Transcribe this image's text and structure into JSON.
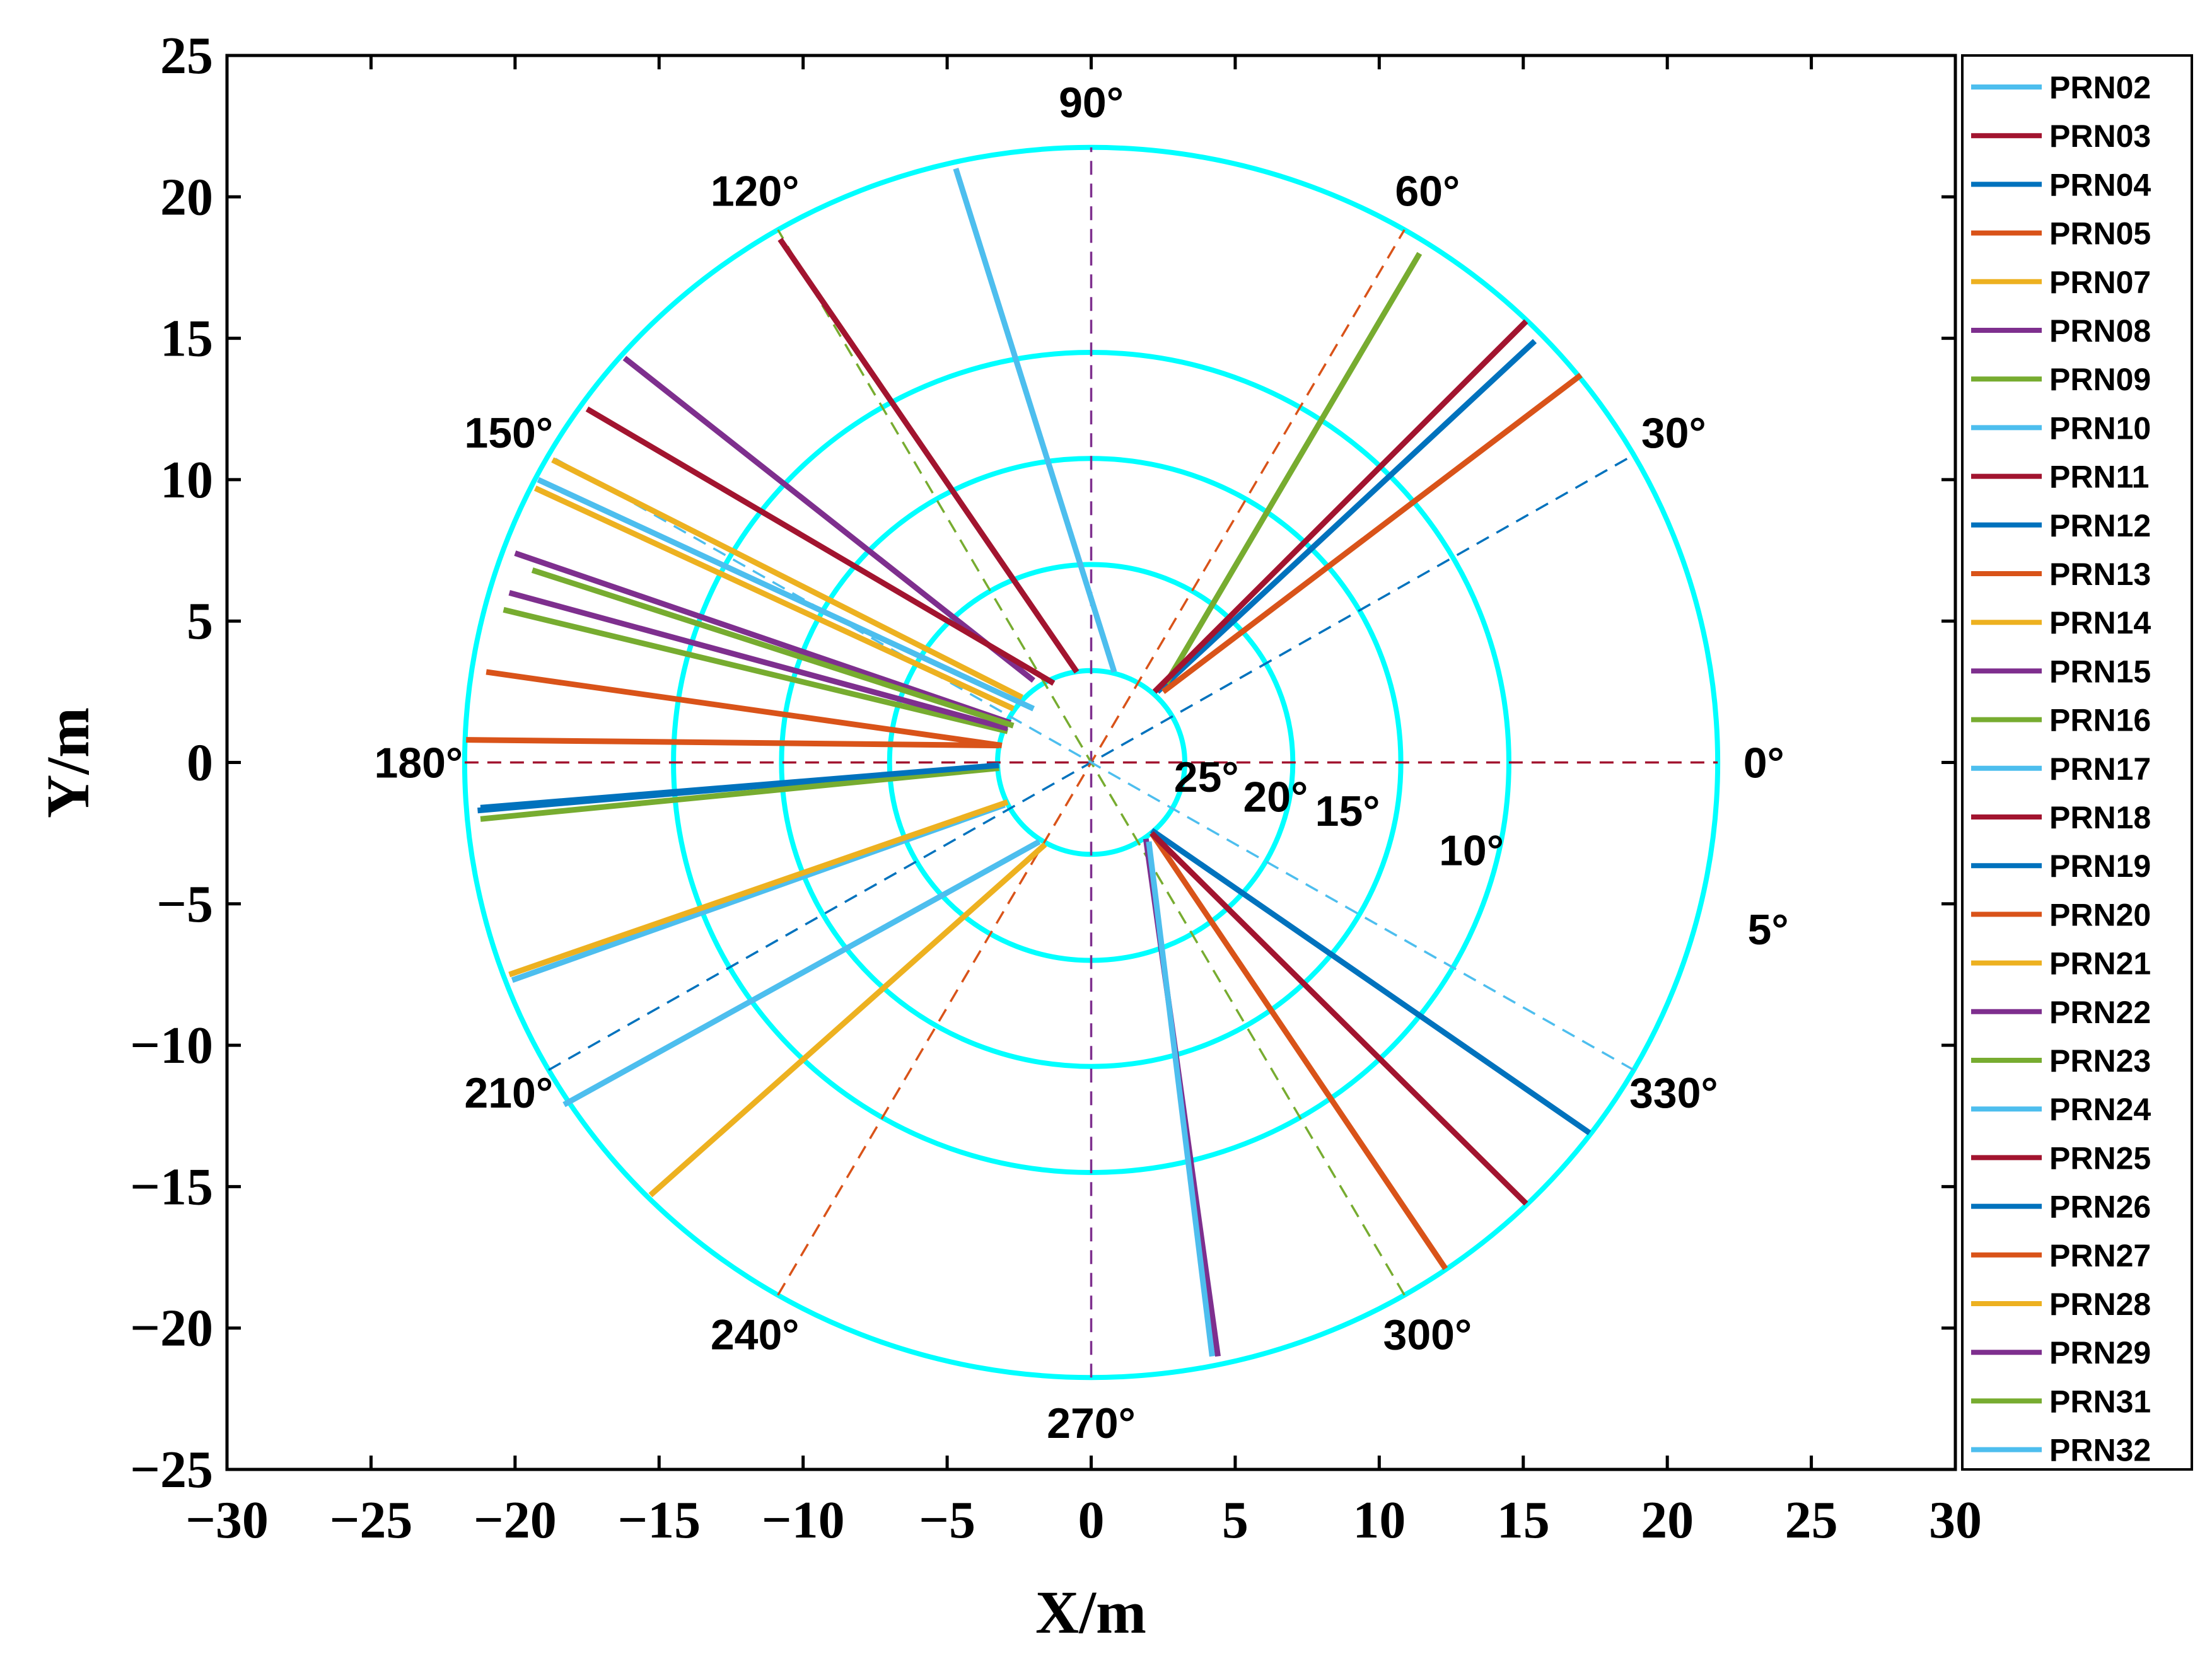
{
  "chart_data": {
    "type": "line",
    "xlabel": "X/m",
    "ylabel": "Y/m",
    "xlim": [
      -30,
      30
    ],
    "ylim": [
      -25,
      25
    ],
    "x_ticks": [
      -30,
      -25,
      -20,
      -15,
      -10,
      -5,
      0,
      5,
      10,
      15,
      20,
      25,
      30
    ],
    "y_ticks": [
      -25,
      -20,
      -15,
      -10,
      -5,
      0,
      5,
      10,
      15,
      20,
      25
    ],
    "grid": false,
    "legend_position": "right",
    "polar_overlay": {
      "ring_color": "#00ffff",
      "ring_radii": [
        3.25,
        7.0,
        10.75,
        14.5,
        21.75
      ],
      "ring_labels": [
        "25°",
        "20°",
        "15°",
        "10°",
        "5°"
      ],
      "ring_label_positions": [
        [
          4.0,
          -0.5
        ],
        [
          6.4,
          -1.2
        ],
        [
          8.9,
          -1.7
        ],
        [
          13.2,
          -3.1
        ],
        [
          23.5,
          -5.9
        ]
      ],
      "radial_lines": [
        {
          "angle": 0,
          "color": "#a2142f"
        },
        {
          "angle": 30,
          "color": "#0072bd"
        },
        {
          "angle": 60,
          "color": "#d95319"
        },
        {
          "angle": 90,
          "color": "#7e2f8e"
        },
        {
          "angle": 120,
          "color": "#77ac30"
        },
        {
          "angle": 150,
          "color": "#4dbeee"
        }
      ],
      "angle_labels": [
        {
          "text": "0°",
          "angle": 0
        },
        {
          "text": "30°",
          "angle": 30
        },
        {
          "text": "60°",
          "angle": 60
        },
        {
          "text": "90°",
          "angle": 90
        },
        {
          "text": "120°",
          "angle": 120
        },
        {
          "text": "150°",
          "angle": 150
        },
        {
          "text": "180°",
          "angle": 180
        },
        {
          "text": "210°",
          "angle": 210
        },
        {
          "text": "240°",
          "angle": 240
        },
        {
          "text": "270°",
          "angle": 270
        },
        {
          "text": "300°",
          "angle": 300
        },
        {
          "text": "330°",
          "angle": 330
        }
      ]
    },
    "series": [
      {
        "name": "PRN02",
        "color": "#4dbeee",
        "x": [
          -4.7,
          0.8
        ],
        "y": [
          21.0,
          3.2
        ]
      },
      {
        "name": "PRN03",
        "color": "#a2142f",
        "x": [
          -10.8,
          -0.5
        ],
        "y": [
          18.5,
          3.2
        ]
      },
      {
        "name": "PRN04",
        "color": "#0072bd",
        "x": [
          15.4,
          2.3
        ],
        "y": [
          14.9,
          2.5
        ]
      },
      {
        "name": "PRN05",
        "color": "#d95319",
        "x": [
          17.0,
          2.5
        ],
        "y": [
          13.7,
          2.5
        ]
      },
      {
        "name": "PRN07",
        "color": "#edb120",
        "x": [
          -18.7,
          -2.4
        ],
        "y": [
          10.7,
          2.3
        ]
      },
      {
        "name": "PRN08",
        "color": "#7e2f8e",
        "x": [
          -16.2,
          -2.0
        ],
        "y": [
          14.3,
          2.9
        ]
      },
      {
        "name": "PRN09",
        "color": "#77ac30",
        "x": [
          11.4,
          2.6
        ],
        "y": [
          18.0,
          2.8
        ]
      },
      {
        "name": "PRN10",
        "color": "#4dbeee",
        "x": [
          -19.2,
          -2.0
        ],
        "y": [
          10.0,
          1.9
        ]
      },
      {
        "name": "PRN11",
        "color": "#a2142f",
        "x": [
          15.1,
          2.2
        ],
        "y": [
          15.6,
          2.5
        ]
      },
      {
        "name": "PRN12",
        "color": "#0072bd",
        "x": [
          17.3,
          2.1
        ],
        "y": [
          -13.1,
          -2.4
        ]
      },
      {
        "name": "PRN13",
        "color": "#d95319",
        "x": [
          12.3,
          2.1
        ],
        "y": [
          -17.9,
          -2.5
        ]
      },
      {
        "name": "PRN14",
        "color": "#edb120",
        "x": [
          -19.3,
          -2.7
        ],
        "y": [
          9.7,
          1.9
        ]
      },
      {
        "name": "PRN15",
        "color": "#7e2f8e",
        "x": [
          -20.0,
          -2.8
        ],
        "y": [
          7.4,
          1.4
        ]
      },
      {
        "name": "PRN16",
        "color": "#77ac30",
        "x": [
          -20.4,
          -2.9
        ],
        "y": [
          5.4,
          1.1
        ]
      },
      {
        "name": "PRN17",
        "color": "#4dbeee",
        "x": [
          -20.1,
          -3.0
        ],
        "y": [
          -7.7,
          -1.5
        ]
      },
      {
        "name": "PRN18",
        "color": "#a2142f",
        "x": [
          -17.5,
          -1.3
        ],
        "y": [
          12.5,
          2.8
        ]
      },
      {
        "name": "PRN19",
        "color": "#0072bd",
        "x": [
          -21.3,
          -3.2
        ],
        "y": [
          -1.7,
          -0.1
        ]
      },
      {
        "name": "PRN20",
        "color": "#d95319",
        "x": [
          -21.0,
          -3.1
        ],
        "y": [
          3.2,
          0.6
        ]
      },
      {
        "name": "PRN21",
        "color": "#edb120",
        "x": [
          -20.2,
          -2.9
        ],
        "y": [
          -7.5,
          -1.4
        ]
      },
      {
        "name": "PRN22",
        "color": "#7e2f8e",
        "x": [
          -20.2,
          -2.9
        ],
        "y": [
          6.0,
          1.2
        ]
      },
      {
        "name": "PRN23",
        "color": "#77ac30",
        "x": [
          -21.2,
          -3.2
        ],
        "y": [
          -2.0,
          -0.2
        ]
      },
      {
        "name": "PRN24",
        "color": "#4dbeee",
        "x": [
          -18.3,
          -1.8
        ],
        "y": [
          -12.1,
          -2.8
        ]
      },
      {
        "name": "PRN25",
        "color": "#a2142f",
        "x": [
          15.1,
          2.1
        ],
        "y": [
          -15.6,
          -2.5
        ]
      },
      {
        "name": "PRN26",
        "color": "#0072bd",
        "x": [
          -21.2,
          -3.2
        ],
        "y": [
          -1.6,
          -0.1
        ]
      },
      {
        "name": "PRN27",
        "color": "#d95319",
        "x": [
          -21.7,
          -3.2
        ],
        "y": [
          0.8,
          0.6
        ]
      },
      {
        "name": "PRN28",
        "color": "#edb120",
        "x": [
          -15.3,
          -1.6
        ],
        "y": [
          -15.3,
          -2.9
        ]
      },
      {
        "name": "PRN29",
        "color": "#7e2f8e",
        "x": [
          4.4,
          1.9
        ],
        "y": [
          -21.0,
          -2.7
        ]
      },
      {
        "name": "PRN31",
        "color": "#77ac30",
        "x": [
          -19.4,
          -2.7
        ],
        "y": [
          6.8,
          1.3
        ]
      },
      {
        "name": "PRN32",
        "color": "#4dbeee",
        "x": [
          4.2,
          2.0
        ],
        "y": [
          -21.0,
          -2.8
        ]
      }
    ]
  }
}
